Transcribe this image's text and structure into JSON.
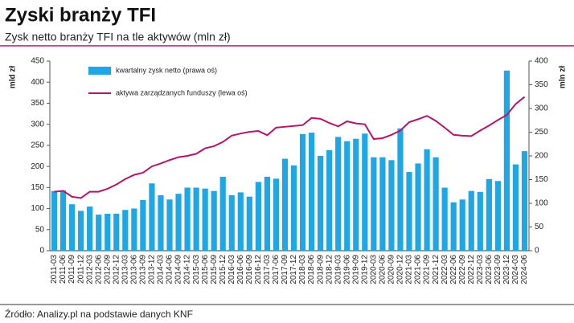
{
  "chart_data": {
    "type": "bar_line",
    "title": "Zyski branży TFI",
    "subtitle": "Zysk netto branży TFI na tle aktywów (mln zł)",
    "source": "Źródło: Analizy.pl na podstawie danych KNF",
    "ylabel": "mld zł",
    "y2label": "mln zł",
    "categories": [
      "2011-03",
      "2011-06",
      "2011-09",
      "2011-12",
      "2012-03",
      "2012-06",
      "2012-09",
      "2012-12",
      "2013-03",
      "2013-06",
      "2013-09",
      "2013-12",
      "2014-03",
      "2014-06",
      "2014-09",
      "2014-12",
      "2015-03",
      "2015-06",
      "2015-09",
      "2015-12",
      "2016-03",
      "2016-06",
      "2016-09",
      "2016-12",
      "2017-03",
      "2017-06",
      "2017-09",
      "2017-12",
      "2018-03",
      "2018-06",
      "2018-09",
      "2018-12",
      "2019-03",
      "2019-06",
      "2019-09",
      "2019-12",
      "2020-03",
      "2020-06",
      "2020-09",
      "2020-12",
      "2021-03",
      "2021-06",
      "2021-09",
      "2021-12",
      "2022-03",
      "2022-06",
      "2022-09",
      "2022-12",
      "2023-03",
      "2023-06",
      "2023-09",
      "2023-12",
      "2024-03",
      "2024-06"
    ],
    "series": [
      {
        "name": "kwartalny zysk netto (prawa oś)",
        "kind": "bar",
        "axis": "y2",
        "color": "#1ea7e4",
        "values": [
          126,
          127,
          98,
          84,
          93,
          76,
          78,
          78,
          86,
          89,
          107,
          142,
          117,
          108,
          120,
          133,
          133,
          131,
          126,
          156,
          117,
          123,
          114,
          145,
          156,
          152,
          194,
          180,
          246,
          249,
          200,
          212,
          240,
          231,
          236,
          247,
          197,
          197,
          191,
          258,
          166,
          184,
          214,
          197,
          133,
          102,
          108,
          126,
          124,
          151,
          147,
          380,
          182,
          210
        ]
      },
      {
        "name": "aktywa zarządzanych funduszy (lewa oś)",
        "kind": "line",
        "axis": "y",
        "color": "#b5156a",
        "values": [
          140,
          142,
          128,
          125,
          140,
          140,
          147,
          157,
          170,
          180,
          185,
          200,
          207,
          215,
          222,
          225,
          230,
          243,
          248,
          258,
          273,
          278,
          282,
          284,
          274,
          292,
          294,
          296,
          298,
          315,
          313,
          303,
          295,
          307,
          302,
          300,
          265,
          267,
          275,
          285,
          305,
          312,
          320,
          308,
          292,
          275,
          273,
          272,
          285,
          297,
          310,
          322,
          348,
          365
        ]
      }
    ],
    "ylim": [
      0,
      450
    ],
    "yticks": [
      0,
      50,
      100,
      150,
      200,
      250,
      300,
      350,
      400,
      450
    ],
    "y2lim": [
      0,
      400
    ],
    "y2ticks": [
      0,
      50,
      100,
      150,
      200,
      250,
      300,
      350,
      400
    ],
    "legend": "upper left",
    "grid": false
  }
}
